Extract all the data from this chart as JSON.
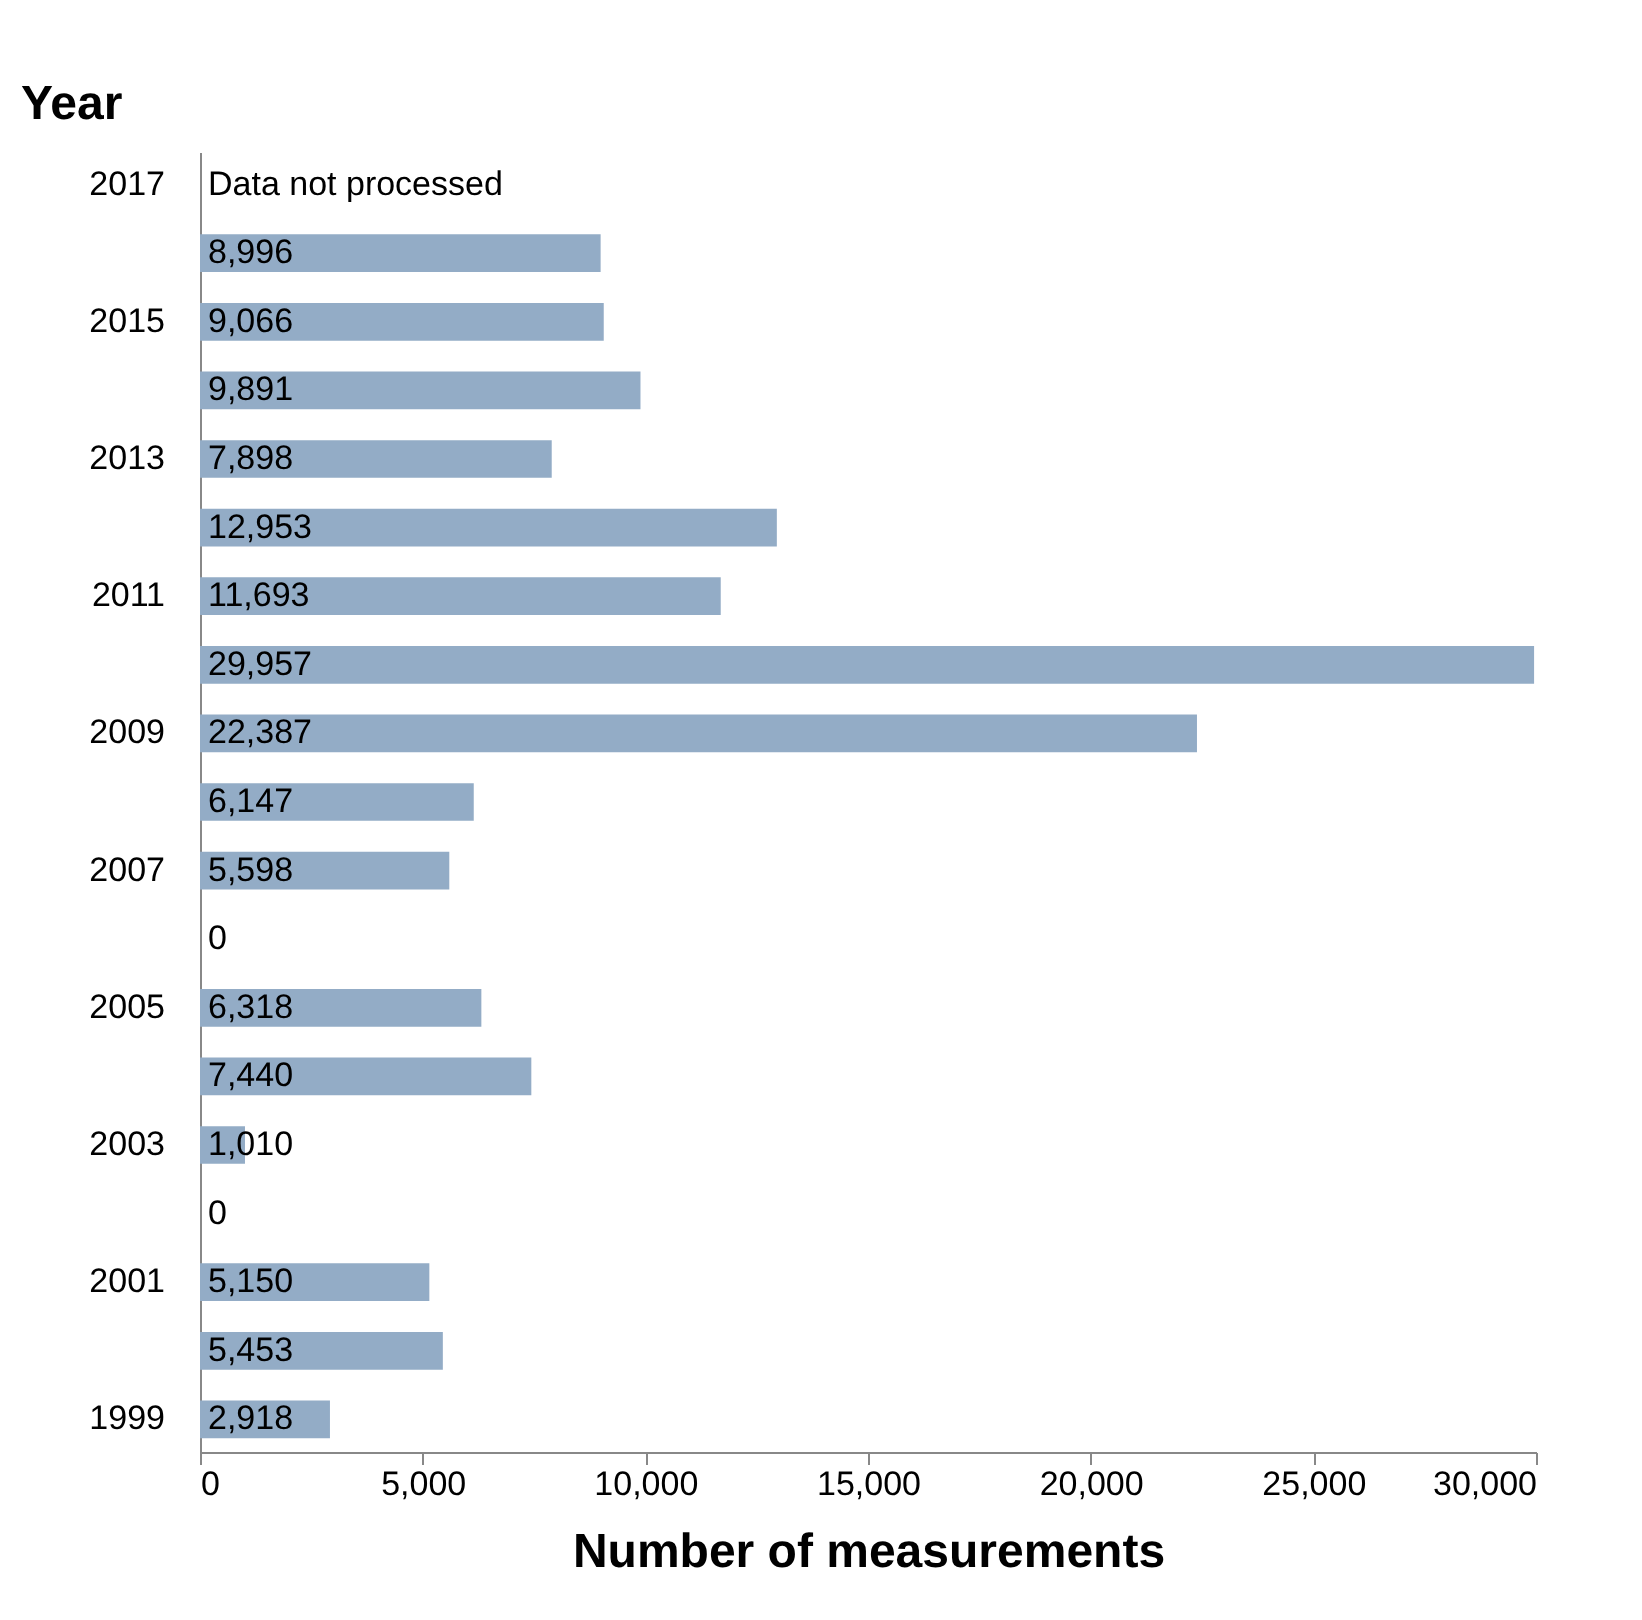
{
  "chart_data": {
    "type": "bar",
    "orientation": "horizontal",
    "ylabel": "Year",
    "xlabel": "Number of measurements",
    "categories": [
      "2017",
      null,
      "2015",
      null,
      "2013",
      null,
      "2011",
      null,
      "2009",
      null,
      "2007",
      null,
      "2005",
      null,
      "2003",
      null,
      "2001",
      null,
      "1999"
    ],
    "values": [
      null,
      8996,
      9066,
      9891,
      7898,
      12953,
      11693,
      29957,
      22387,
      6147,
      5598,
      0,
      6318,
      7440,
      1010,
      0,
      5150,
      5453,
      2918
    ],
    "value_labels": [
      "Data not processed",
      "8,996",
      "9,066",
      "9,891",
      "7,898",
      "12,953",
      "11,693",
      "29,957",
      "22,387",
      "6,147",
      "5,598",
      "0",
      "6,318",
      "7,440",
      "1,010",
      "0",
      "5,150",
      "5,453",
      "2,918"
    ],
    "color": "#93acc6",
    "xlim": [
      0,
      30000
    ],
    "xticks": [
      0,
      {
        "value": 5000,
        "label": "5,000"
      },
      {
        "value": 10000,
        "label": "10,000"
      },
      {
        "value": 15000,
        "label": "15,000"
      },
      {
        "value": 20000,
        "label": "20,000"
      },
      {
        "value": 25000,
        "label": "25,000"
      },
      {
        "value": 30000,
        "label": "30,000"
      }
    ],
    "grid": false
  }
}
